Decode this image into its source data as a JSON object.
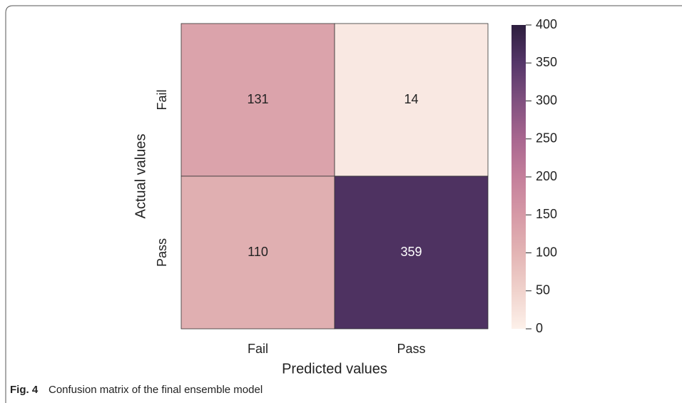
{
  "chart_data": {
    "type": "heatmap",
    "x_label": "Predicted values",
    "y_label": "Actual values",
    "x_categories": [
      "Fail",
      "Pass"
    ],
    "y_categories": [
      "Fail",
      "Pass"
    ],
    "values": [
      [
        131,
        14
      ],
      [
        110,
        359
      ]
    ],
    "clim": [
      0,
      400
    ],
    "cticks": [
      0,
      50,
      100,
      150,
      200,
      250,
      300,
      350,
      400
    ],
    "colormap": [
      "#fdf1ea",
      "#f0d2cc",
      "#e3b4b4",
      "#d699a6",
      "#c47f9b",
      "#a8668f",
      "#80507f",
      "#553669",
      "#2d1e3e"
    ],
    "caption_label": "Fig. 4",
    "caption": "Confusion matrix of the final ensemble model"
  }
}
